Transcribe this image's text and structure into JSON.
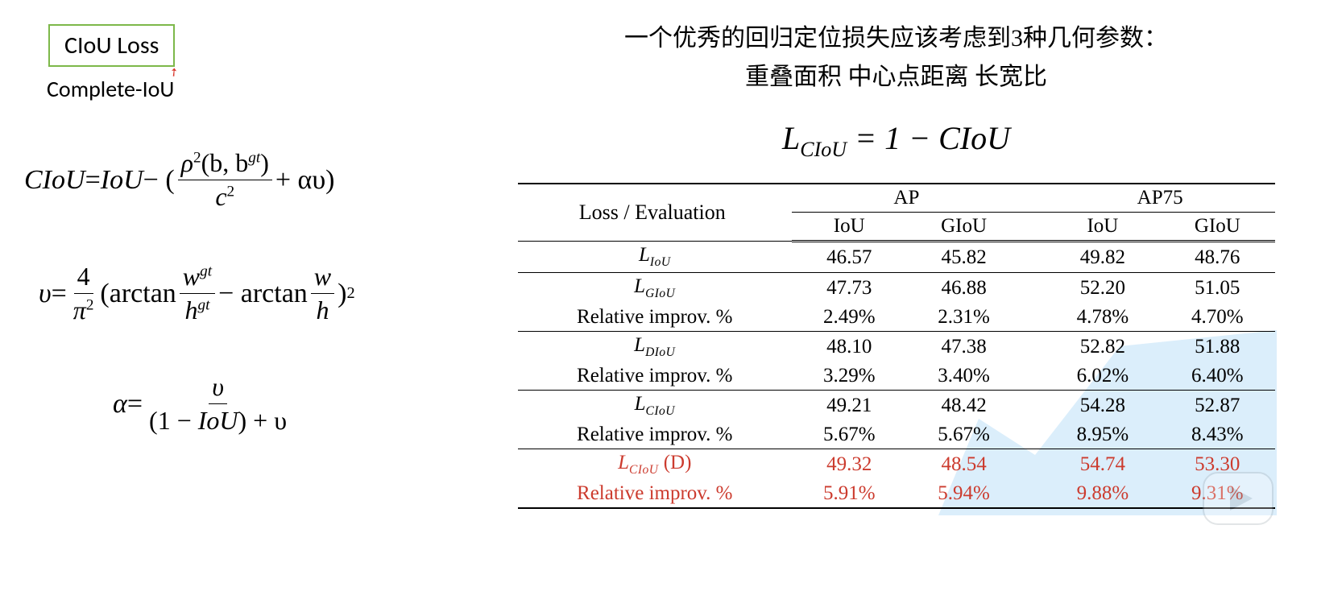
{
  "left": {
    "box_title": "CIoU Loss",
    "subtitle": "Complete-IoU",
    "eq1": {
      "lhs": "CIoU",
      "eq": " = ",
      "iou": "IoU",
      "minus": " − (",
      "num": "ρ",
      "num_sup": "2",
      "num_args": "(b, b",
      "num_args_sup": "gt",
      "num_close": ")",
      "den": "c",
      "den_sup": "2",
      "plus": " + αυ)"
    },
    "eq2": {
      "lhs": "υ",
      "eq": " = ",
      "four": "4",
      "pi": "π",
      "pi_sup": "2",
      "open": "(arctan ",
      "w": "w",
      "gt": "gt",
      "h": "h",
      "minus": " − arctan ",
      "close": ")",
      "close_sup": "2"
    },
    "eq3": {
      "lhs": "α",
      "eq": " = ",
      "num": "υ",
      "den_a": "(1 − ",
      "den_iou": "IoU",
      "den_b": ") + υ"
    }
  },
  "right": {
    "cn_line1": "一个优秀的回归定位损失应该考虑到3种几何参数：",
    "cn_line2": "重叠面积   中心点距离   长宽比",
    "loss_eq": {
      "L": "L",
      "sub": "CIoU",
      "rhs": " = 1 − CIoU"
    },
    "table": {
      "header": {
        "loss_eval": "Loss / Evaluation",
        "ap": "AP",
        "ap75": "AP75",
        "iou": "IoU",
        "giou": "GIoU"
      },
      "row_labels": {
        "rel_improv": "Relative improv. %",
        "L_IoU": "IoU",
        "L_GIoU": "GIoU",
        "L_DIoU": "DIoU",
        "L_CIoU": "CIoU",
        "L_CIoU_D": "CIoU",
        "D_suffix": "(D)"
      },
      "rows": [
        {
          "key": "L_IoU",
          "vals": [
            "46.57",
            "45.82",
            "49.82",
            "48.76"
          ],
          "bold": false,
          "red": false
        },
        {
          "key": "L_GIoU",
          "vals": [
            "47.73",
            "46.88",
            "52.20",
            "51.05"
          ],
          "bold": false,
          "red": false
        },
        {
          "key": "rel",
          "vals": [
            "2.49%",
            "2.31%",
            "4.78%",
            "4.70%"
          ],
          "bold": false,
          "red": false
        },
        {
          "key": "L_DIoU",
          "vals": [
            "48.10",
            "47.38",
            "52.82",
            "51.88"
          ],
          "bold": false,
          "red": false
        },
        {
          "key": "rel",
          "vals": [
            "3.29%",
            "3.40%",
            "6.02%",
            "6.40%"
          ],
          "bold": false,
          "red": false
        },
        {
          "key": "L_CIoU",
          "vals": [
            "49.21",
            "48.42",
            "54.28",
            "52.87"
          ],
          "bold": true,
          "red": false
        },
        {
          "key": "rel",
          "vals": [
            "5.67%",
            "5.67%",
            "8.95%",
            "8.43%"
          ],
          "bold": true,
          "red": false
        },
        {
          "key": "L_CIoU_D",
          "vals": [
            "49.32",
            "48.54",
            "54.74",
            "53.30"
          ],
          "bold": true,
          "red": true
        },
        {
          "key": "rel",
          "vals": [
            "5.91%",
            "5.94%",
            "9.88%",
            "9.31%"
          ],
          "bold": true,
          "red": true
        }
      ]
    },
    "colors": {
      "box_border": "#7db84a",
      "red_text": "#cc3b2e",
      "watermark_fill": "#dbeefb"
    }
  }
}
